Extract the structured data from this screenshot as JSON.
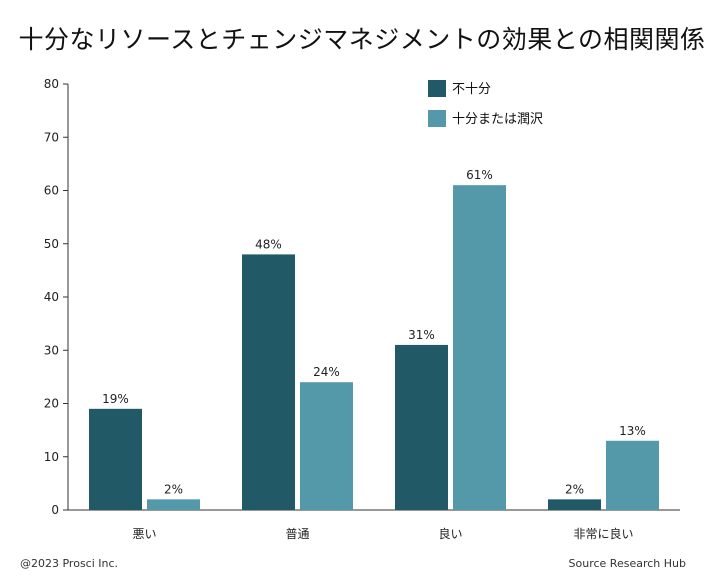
{
  "chart_data": {
    "type": "bar",
    "title": "十分なリソースとチェンジマネジメントの効果との相関関係",
    "categories": [
      "悪い",
      "普通",
      "良い",
      "非常に良い"
    ],
    "series": [
      {
        "name": "不十分",
        "values": [
          19,
          48,
          31,
          2
        ],
        "labels": [
          "19%",
          "48%",
          "31%",
          "2%"
        ],
        "color": "#215a66"
      },
      {
        "name": "十分または潤沢",
        "values": [
          2,
          24,
          61,
          13
        ],
        "labels": [
          "2%",
          "24%",
          "61%",
          "13%"
        ],
        "color": "#5499aa"
      }
    ],
    "ylim": [
      0,
      80
    ],
    "yticks": [
      0,
      10,
      20,
      30,
      40,
      50,
      60,
      70,
      80
    ],
    "grid": false,
    "legend": "top-right"
  },
  "footer": {
    "copyright": "@2023 Prosci Inc.",
    "source": "Source Research Hub"
  }
}
